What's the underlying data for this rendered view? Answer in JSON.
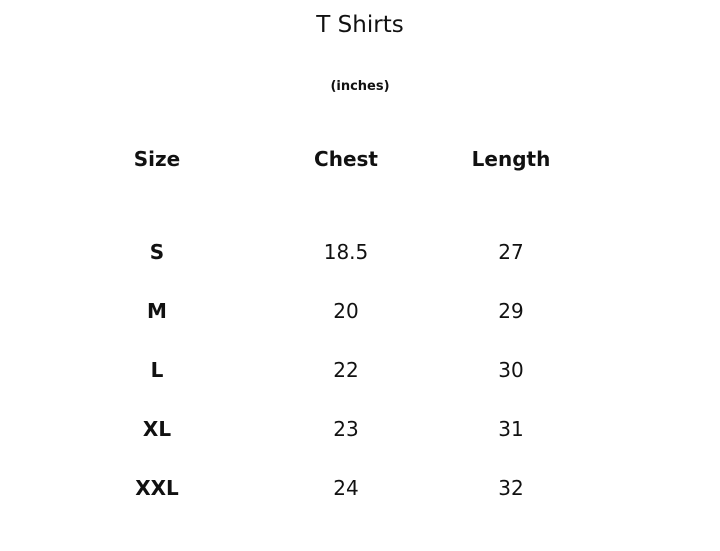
{
  "title": "T Shirts",
  "unit": "(inches)",
  "headers": [
    "Size",
    "Chest",
    "Length"
  ],
  "rows": [
    [
      "S",
      "18.5",
      "27"
    ],
    [
      "M",
      "20",
      "29"
    ],
    [
      "L",
      "22",
      "30"
    ],
    [
      "XL",
      "23",
      "31"
    ],
    [
      "XXL",
      "24",
      "32"
    ]
  ]
}
